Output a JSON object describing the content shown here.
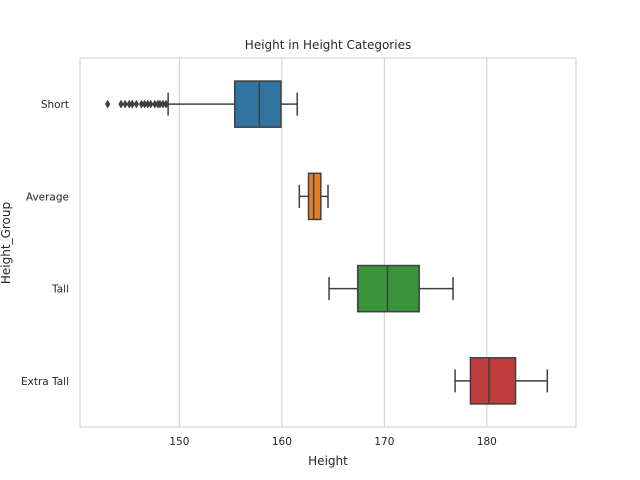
{
  "chart_data": {
    "type": "boxplot",
    "orientation": "horizontal",
    "title": "Height in Height Categories",
    "xlabel": "Height",
    "ylabel": "Height_Group",
    "xlim": [
      140.3,
      188.7
    ],
    "xticks": [
      150,
      160,
      170,
      180
    ],
    "grid": "vertical",
    "categories": [
      "Short",
      "Average",
      "Tall",
      "Extra Tall"
    ],
    "series": [
      {
        "name": "Short",
        "color": "#3274a1",
        "whisker_low": 148.9,
        "q1": 155.4,
        "median": 157.8,
        "q3": 159.9,
        "whisker_high": 161.5,
        "outliers": [
          143.0,
          144.3,
          144.7,
          145.1,
          145.4,
          145.8,
          146.3,
          146.6,
          146.9,
          147.2,
          147.6,
          147.9,
          148.1,
          148.4,
          148.7
        ]
      },
      {
        "name": "Average",
        "color": "#e1812c",
        "whisker_low": 161.7,
        "q1": 162.6,
        "median": 163.1,
        "q3": 163.8,
        "whisker_high": 164.5,
        "outliers": []
      },
      {
        "name": "Tall",
        "color": "#3a923a",
        "whisker_low": 164.6,
        "q1": 167.4,
        "median": 170.3,
        "q3": 173.4,
        "whisker_high": 176.7,
        "outliers": []
      },
      {
        "name": "Extra Tall",
        "color": "#c03d3e",
        "whisker_low": 176.9,
        "q1": 178.4,
        "median": 180.2,
        "q3": 182.8,
        "whisker_high": 185.9,
        "outliers": []
      }
    ]
  }
}
